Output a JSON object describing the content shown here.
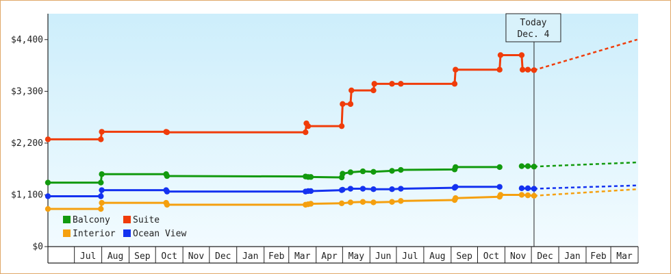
{
  "chart_data": {
    "type": "line",
    "x_type": "date",
    "xlim": [
      "2012-06-01",
      "2014-03-31"
    ],
    "ylim": [
      0,
      4950
    ],
    "y_ticks": [
      {
        "value": 0,
        "label": "$0"
      },
      {
        "value": 1100,
        "label": "$1,100"
      },
      {
        "value": 2200,
        "label": "$2,200"
      },
      {
        "value": 3300,
        "label": "$3,300"
      },
      {
        "value": 4400,
        "label": "$4,400"
      }
    ],
    "x_ticks": [
      {
        "label": "Jul",
        "start": "2012-07-01",
        "end": "2012-08-01"
      },
      {
        "label": "Aug",
        "start": "2012-08-01",
        "end": "2012-09-01"
      },
      {
        "label": "Sep",
        "start": "2012-09-01",
        "end": "2012-10-01"
      },
      {
        "label": "Oct",
        "start": "2012-10-01",
        "end": "2012-11-01"
      },
      {
        "label": "Nov",
        "start": "2012-11-01",
        "end": "2012-12-01"
      },
      {
        "label": "Dec",
        "start": "2012-12-01",
        "end": "2013-01-01"
      },
      {
        "label": "Jan",
        "start": "2013-01-01",
        "end": "2013-02-01"
      },
      {
        "label": "Feb",
        "start": "2013-02-01",
        "end": "2013-03-01"
      },
      {
        "label": "Mar",
        "start": "2013-03-01",
        "end": "2013-04-01"
      },
      {
        "label": "Apr",
        "start": "2013-04-01",
        "end": "2013-05-01"
      },
      {
        "label": "May",
        "start": "2013-05-01",
        "end": "2013-06-01"
      },
      {
        "label": "Jun",
        "start": "2013-06-01",
        "end": "2013-07-01"
      },
      {
        "label": "Jul",
        "start": "2013-07-01",
        "end": "2013-08-01"
      },
      {
        "label": "Aug",
        "start": "2013-08-01",
        "end": "2013-09-01"
      },
      {
        "label": "Sep",
        "start": "2013-09-01",
        "end": "2013-10-01"
      },
      {
        "label": "Oct",
        "start": "2013-10-01",
        "end": "2013-11-01"
      },
      {
        "label": "Nov",
        "start": "2013-11-01",
        "end": "2013-12-01"
      },
      {
        "label": "Dec",
        "start": "2013-12-01",
        "end": "2014-01-01"
      },
      {
        "label": "Jan",
        "start": "2014-01-01",
        "end": "2014-02-01"
      },
      {
        "label": "Feb",
        "start": "2014-02-01",
        "end": "2014-03-01"
      },
      {
        "label": "Mar",
        "start": "2014-03-01",
        "end": "2014-04-01"
      }
    ],
    "background_gradient": [
      "#cdeefb",
      "#f2fbff"
    ],
    "grid": false,
    "legend_position": "bottom-left",
    "annotation": {
      "date": "2013-12-04",
      "lines": [
        "Today",
        "Dec. 4"
      ]
    },
    "series": [
      {
        "name": "Suite",
        "color": "#f03c0a",
        "points": [
          [
            "2012-06-01",
            2280
          ],
          [
            "2012-07-31",
            2280
          ],
          [
            "2012-08-01",
            2440
          ],
          [
            "2012-10-13",
            2440
          ],
          [
            "2012-10-14",
            2430
          ],
          [
            "2013-03-20",
            2430
          ],
          [
            "2013-03-21",
            2620
          ],
          [
            "2013-03-23",
            2560
          ],
          [
            "2013-03-26",
            2560
          ],
          [
            "2013-04-30",
            2560
          ],
          [
            "2013-05-01",
            3030
          ],
          [
            "2013-05-10",
            3030
          ],
          [
            "2013-05-11",
            3320
          ],
          [
            "2013-06-05",
            3320
          ],
          [
            "2013-06-06",
            3460
          ],
          [
            "2013-06-26",
            3460
          ],
          [
            "2013-07-06",
            3460
          ],
          [
            "2013-09-05",
            3460
          ],
          [
            "2013-09-06",
            3760
          ],
          [
            "2013-10-26",
            3760
          ],
          [
            "2013-10-27",
            4070
          ],
          [
            "2013-11-20",
            4070
          ],
          [
            "2013-11-21",
            3760
          ],
          [
            "2013-11-27",
            3760
          ],
          [
            "2013-12-04",
            3750
          ]
        ],
        "markers": [
          "2012-06-01",
          "2012-07-31",
          "2012-08-01",
          "2012-10-13",
          "2012-10-14",
          "2013-03-20",
          "2013-03-21",
          "2013-03-23",
          "2013-04-30",
          "2013-05-01",
          "2013-05-10",
          "2013-05-11",
          "2013-06-05",
          "2013-06-06",
          "2013-06-26",
          "2013-07-06",
          "2013-09-05",
          "2013-09-06",
          "2013-10-26",
          "2013-10-27",
          "2013-11-20",
          "2013-11-21",
          "2013-11-27",
          "2013-12-04"
        ],
        "projection": [
          [
            "2013-12-04",
            3750
          ],
          [
            "2014-03-31",
            4400
          ]
        ]
      },
      {
        "name": "Balcony",
        "color": "#129a0e",
        "points": [
          [
            "2012-06-01",
            1360
          ],
          [
            "2012-07-31",
            1360
          ],
          [
            "2012-08-01",
            1540
          ],
          [
            "2012-10-13",
            1540
          ],
          [
            "2012-10-14",
            1500
          ],
          [
            "2013-03-20",
            1490
          ],
          [
            "2013-03-23",
            1480
          ],
          [
            "2013-03-26",
            1480
          ],
          [
            "2013-04-30",
            1470
          ],
          [
            "2013-05-01",
            1550
          ],
          [
            "2013-05-10",
            1580
          ],
          [
            "2013-05-24",
            1600
          ],
          [
            "2013-06-05",
            1590
          ],
          [
            "2013-06-26",
            1610
          ],
          [
            "2013-07-06",
            1630
          ],
          [
            "2013-09-05",
            1640
          ],
          [
            "2013-09-06",
            1690
          ],
          [
            "2013-10-26",
            1690
          ]
        ],
        "markers": [
          "2012-06-01",
          "2012-07-31",
          "2012-08-01",
          "2012-10-13",
          "2012-10-14",
          "2013-03-20",
          "2013-03-23",
          "2013-03-26",
          "2013-04-30",
          "2013-05-01",
          "2013-05-10",
          "2013-05-24",
          "2013-06-05",
          "2013-06-26",
          "2013-07-06",
          "2013-09-05",
          "2013-09-06",
          "2013-10-26"
        ],
        "segment2": [
          [
            "2013-11-20",
            1710
          ],
          [
            "2013-12-04",
            1700
          ]
        ],
        "segment2_markers": [
          "2013-11-20",
          "2013-11-27",
          "2013-12-04"
        ],
        "projection": [
          [
            "2013-12-04",
            1700
          ],
          [
            "2014-03-31",
            1790
          ]
        ]
      },
      {
        "name": "Ocean View",
        "color": "#1432f0",
        "points": [
          [
            "2012-06-01",
            1070
          ],
          [
            "2012-07-31",
            1070
          ],
          [
            "2012-08-01",
            1200
          ],
          [
            "2012-10-13",
            1200
          ],
          [
            "2012-10-14",
            1170
          ],
          [
            "2013-03-20",
            1170
          ],
          [
            "2013-03-23",
            1180
          ],
          [
            "2013-03-26",
            1180
          ],
          [
            "2013-04-30",
            1200
          ],
          [
            "2013-05-01",
            1210
          ],
          [
            "2013-05-10",
            1230
          ],
          [
            "2013-05-24",
            1230
          ],
          [
            "2013-06-05",
            1220
          ],
          [
            "2013-06-26",
            1220
          ],
          [
            "2013-07-06",
            1230
          ],
          [
            "2013-09-05",
            1250
          ],
          [
            "2013-09-06",
            1270
          ],
          [
            "2013-10-26",
            1270
          ]
        ],
        "markers": [
          "2012-06-01",
          "2012-07-31",
          "2012-08-01",
          "2012-10-13",
          "2012-10-14",
          "2013-03-20",
          "2013-03-23",
          "2013-03-26",
          "2013-04-30",
          "2013-05-01",
          "2013-05-10",
          "2013-05-24",
          "2013-06-05",
          "2013-06-26",
          "2013-07-06",
          "2013-09-05",
          "2013-09-06",
          "2013-10-26"
        ],
        "segment2": [
          [
            "2013-11-20",
            1240
          ],
          [
            "2013-12-04",
            1230
          ]
        ],
        "segment2_markers": [
          "2013-11-20",
          "2013-11-27",
          "2013-12-04"
        ],
        "projection": [
          [
            "2013-12-04",
            1230
          ],
          [
            "2014-03-31",
            1300
          ]
        ]
      },
      {
        "name": "Interior",
        "color": "#f5a00f",
        "points": [
          [
            "2012-06-01",
            800
          ],
          [
            "2012-07-31",
            800
          ],
          [
            "2012-08-01",
            930
          ],
          [
            "2012-10-13",
            930
          ],
          [
            "2012-10-14",
            890
          ],
          [
            "2013-03-20",
            890
          ],
          [
            "2013-03-23",
            900
          ],
          [
            "2013-03-26",
            910
          ],
          [
            "2013-04-30",
            920
          ],
          [
            "2013-05-01",
            920
          ],
          [
            "2013-05-10",
            940
          ],
          [
            "2013-05-24",
            950
          ],
          [
            "2013-06-05",
            940
          ],
          [
            "2013-06-26",
            950
          ],
          [
            "2013-07-06",
            970
          ],
          [
            "2013-09-05",
            990
          ],
          [
            "2013-09-06",
            1030
          ],
          [
            "2013-10-26",
            1060
          ],
          [
            "2013-10-27",
            1100
          ],
          [
            "2013-11-20",
            1100
          ],
          [
            "2013-11-27",
            1090
          ],
          [
            "2013-12-04",
            1080
          ]
        ],
        "markers": [
          "2012-06-01",
          "2012-07-31",
          "2012-08-01",
          "2012-10-13",
          "2012-10-14",
          "2013-03-20",
          "2013-03-23",
          "2013-03-26",
          "2013-04-30",
          "2013-05-10",
          "2013-05-24",
          "2013-06-05",
          "2013-06-26",
          "2013-07-06",
          "2013-09-05",
          "2013-09-06",
          "2013-10-26",
          "2013-10-27",
          "2013-11-20",
          "2013-11-27",
          "2013-12-04"
        ],
        "projection": [
          [
            "2013-12-04",
            1080
          ],
          [
            "2014-03-31",
            1220
          ]
        ]
      }
    ],
    "legend": [
      {
        "name": "Balcony",
        "color": "#129a0e"
      },
      {
        "name": "Suite",
        "color": "#f03c0a"
      },
      {
        "name": "Interior",
        "color": "#f5a00f"
      },
      {
        "name": "Ocean View",
        "color": "#1432f0"
      }
    ]
  }
}
